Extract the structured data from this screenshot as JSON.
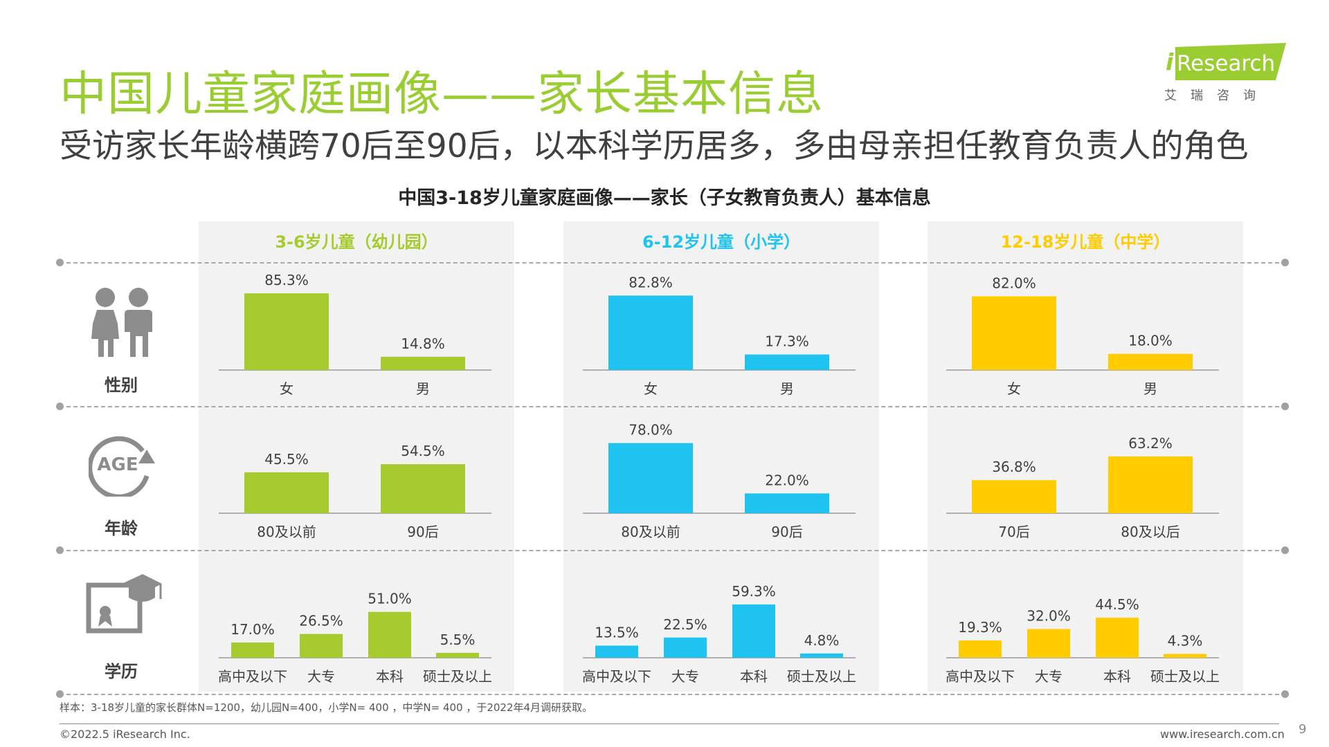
{
  "header": {
    "title": "中国儿童家庭画像——家长基本信息",
    "subtitle": "受访家长年龄横跨70后至90后，以本科学历居多，多由母亲担任教育负责人的角色"
  },
  "logo": {
    "text": "Research",
    "cn": "艾瑞咨询"
  },
  "chart_title": "中国3-18岁儿童家庭画像——家长（子女教育负责人）基本信息",
  "rows": [
    {
      "label": "性别",
      "icon": "children-icon"
    },
    {
      "label": "年龄",
      "icon": "age-icon"
    },
    {
      "label": "学历",
      "icon": "diploma-icon"
    }
  ],
  "colors": {
    "title": "#9ACD32",
    "kindergarten": "#A5CB2E",
    "primary": "#1EC3F0",
    "middle": "#FFCC00"
  },
  "chart_data": {
    "type": "bar",
    "title": "中国3-18岁儿童家庭画像——家长（子女教育负责人）基本信息",
    "panels": [
      {
        "name": "3-6岁儿童（幼儿园）",
        "color": "#A5CB2E",
        "gender": {
          "categories": [
            "女",
            "男"
          ],
          "values": [
            85.3,
            14.8
          ],
          "labels": [
            "85.3%",
            "14.8%"
          ]
        },
        "age": {
          "categories": [
            "80及以前",
            "90后"
          ],
          "values": [
            45.5,
            54.5
          ],
          "labels": [
            "45.5%",
            "54.5%"
          ]
        },
        "education": {
          "categories": [
            "高中及以下",
            "大专",
            "本科",
            "硕士及以上"
          ],
          "values": [
            17.0,
            26.5,
            51.0,
            5.5
          ],
          "labels": [
            "17.0%",
            "26.5%",
            "51.0%",
            "5.5%"
          ]
        }
      },
      {
        "name": "6-12岁儿童（小学）",
        "color": "#1EC3F0",
        "gender": {
          "categories": [
            "女",
            "男"
          ],
          "values": [
            82.8,
            17.3
          ],
          "labels": [
            "82.8%",
            "17.3%"
          ]
        },
        "age": {
          "categories": [
            "80及以前",
            "90后"
          ],
          "values": [
            78.0,
            22.0
          ],
          "labels": [
            "78.0%",
            "22.0%"
          ]
        },
        "education": {
          "categories": [
            "高中及以下",
            "大专",
            "本科",
            "硕士及以上"
          ],
          "values": [
            13.5,
            22.5,
            59.3,
            4.8
          ],
          "labels": [
            "13.5%",
            "22.5%",
            "59.3%",
            "4.8%"
          ]
        }
      },
      {
        "name": "12-18岁儿童（中学）",
        "color": "#FFCC00",
        "gender": {
          "categories": [
            "女",
            "男"
          ],
          "values": [
            82.0,
            18.0
          ],
          "labels": [
            "82.0%",
            "18.0%"
          ]
        },
        "age": {
          "categories": [
            "70后",
            "80及以后"
          ],
          "values": [
            36.8,
            63.2
          ],
          "labels": [
            "36.8%",
            "63.2%"
          ]
        },
        "education": {
          "categories": [
            "高中及以下",
            "大专",
            "本科",
            "硕士及以上"
          ],
          "values": [
            19.3,
            32.0,
            44.5,
            4.3
          ],
          "labels": [
            "19.3%",
            "32.0%",
            "44.5%",
            "4.3%"
          ]
        }
      }
    ]
  },
  "footer": {
    "note": "样本：3-18岁儿童的家长群体N=1200，幼儿园N=400，小学N= 400 ，中学N= 400 ，于2022年4月调研获取。",
    "copyright": "©2022.5 iResearch Inc.",
    "website": "www.iresearch.com.cn",
    "page": "9"
  }
}
